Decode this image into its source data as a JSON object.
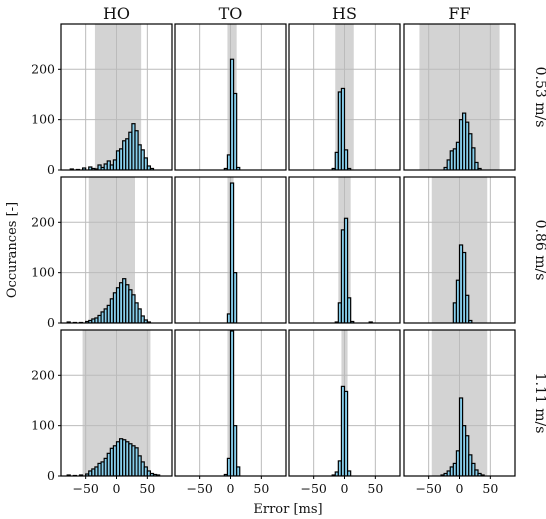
{
  "chart_data": {
    "type": "bar",
    "xlabel": "Error [ms]",
    "ylabel": "Occurances [-]",
    "columns": [
      "HO",
      "TO",
      "HS",
      "FF"
    ],
    "rows": [
      "0.53 m/s",
      "0.86 m/s",
      "1.11 m/s"
    ],
    "xlim": [
      -90,
      90
    ],
    "ylim": [
      0,
      290
    ],
    "xticks": [
      -50,
      0,
      50
    ],
    "yticks": [
      0,
      100,
      200
    ],
    "grid": true,
    "colors": {
      "bar": "#87ceeb",
      "bar_edge": "#000000",
      "band": "#d3d3d3",
      "grid": "#bbbbbb"
    },
    "bin_width": 5,
    "panels": [
      {
        "column": "HO",
        "row": "0.53 m/s",
        "band": [
          -35,
          40
        ],
        "bin_starts": [
          -75,
          -65,
          -55,
          -45,
          -40,
          -35,
          -30,
          -25,
          -20,
          -15,
          -10,
          -5,
          0,
          5,
          10,
          15,
          20,
          25,
          30,
          35,
          40,
          45,
          50,
          55
        ],
        "counts": [
          2,
          1,
          4,
          6,
          3,
          2,
          10,
          5,
          12,
          18,
          10,
          20,
          38,
          42,
          58,
          62,
          75,
          92,
          78,
          50,
          40,
          24,
          8,
          3
        ]
      },
      {
        "column": "TO",
        "row": "0.53 m/s",
        "band": [
          -5,
          10
        ],
        "bin_starts": [
          -10,
          -5,
          0,
          5,
          10
        ],
        "counts": [
          3,
          30,
          220,
          152,
          5
        ]
      },
      {
        "column": "HS",
        "row": "0.53 m/s",
        "band": [
          -15,
          15
        ],
        "bin_starts": [
          -20,
          -15,
          -10,
          -5,
          0,
          5
        ],
        "counts": [
          3,
          35,
          155,
          162,
          40,
          3
        ]
      },
      {
        "column": "FF",
        "row": "0.53 m/s",
        "band": [
          -65,
          65
        ],
        "bin_starts": [
          -25,
          -20,
          -15,
          -10,
          -5,
          0,
          5,
          10,
          15,
          20,
          25,
          30
        ],
        "counts": [
          5,
          20,
          38,
          42,
          55,
          100,
          113,
          95,
          72,
          44,
          15,
          3
        ]
      },
      {
        "column": "HO",
        "row": "0.86 m/s",
        "band": [
          -45,
          30
        ],
        "bin_starts": [
          -80,
          -70,
          -60,
          -50,
          -45,
          -40,
          -35,
          -30,
          -25,
          -20,
          -15,
          -10,
          -5,
          0,
          5,
          10,
          15,
          20,
          25,
          30,
          35,
          40,
          45,
          50
        ],
        "counts": [
          2,
          1,
          1,
          3,
          5,
          8,
          10,
          15,
          22,
          28,
          35,
          48,
          60,
          70,
          80,
          88,
          76,
          66,
          56,
          40,
          28,
          14,
          6,
          2
        ]
      },
      {
        "column": "TO",
        "row": "0.86 m/s",
        "band": [
          -5,
          5
        ],
        "bin_starts": [
          -5,
          0,
          5
        ],
        "counts": [
          18,
          278,
          100
        ]
      },
      {
        "column": "HS",
        "row": "0.86 m/s",
        "band": [
          -10,
          10
        ],
        "bin_starts": [
          -15,
          -10,
          -5,
          0,
          5,
          10,
          40
        ],
        "counts": [
          2,
          40,
          185,
          208,
          50,
          3,
          2
        ]
      },
      {
        "column": "FF",
        "row": "0.86 m/s",
        "band": [
          -45,
          45
        ],
        "bin_starts": [
          -10,
          -5,
          0,
          5,
          10,
          15
        ],
        "counts": [
          40,
          85,
          155,
          140,
          55,
          5
        ]
      },
      {
        "column": "HO",
        "row": "1.11 m/s",
        "band": [
          -55,
          55
        ],
        "bin_starts": [
          -80,
          -70,
          -60,
          -50,
          -45,
          -40,
          -35,
          -30,
          -25,
          -20,
          -15,
          -10,
          -5,
          0,
          5,
          10,
          15,
          20,
          25,
          30,
          35,
          40,
          45,
          50,
          55,
          60,
          65
        ],
        "counts": [
          2,
          1,
          2,
          4,
          10,
          14,
          18,
          25,
          28,
          35,
          45,
          55,
          60,
          68,
          74,
          72,
          68,
          64,
          60,
          56,
          40,
          28,
          18,
          10,
          5,
          3,
          2
        ]
      },
      {
        "column": "TO",
        "row": "1.11 m/s",
        "band": [
          -5,
          5
        ],
        "bin_starts": [
          -10,
          -5,
          0,
          5,
          10
        ],
        "counts": [
          3,
          35,
          288,
          100,
          18
        ]
      },
      {
        "column": "HS",
        "row": "1.11 m/s",
        "band": [
          -5,
          5
        ],
        "bin_starts": [
          -20,
          -15,
          -10,
          -5,
          0,
          5
        ],
        "counts": [
          2,
          8,
          30,
          178,
          168,
          10
        ]
      },
      {
        "column": "FF",
        "row": "1.11 m/s",
        "band": [
          -45,
          45
        ],
        "bin_starts": [
          -30,
          -25,
          -20,
          -15,
          -10,
          -5,
          0,
          5,
          10,
          15,
          20,
          25,
          30,
          35
        ],
        "counts": [
          2,
          5,
          10,
          18,
          25,
          50,
          155,
          100,
          80,
          42,
          25,
          12,
          5,
          2
        ]
      }
    ]
  }
}
